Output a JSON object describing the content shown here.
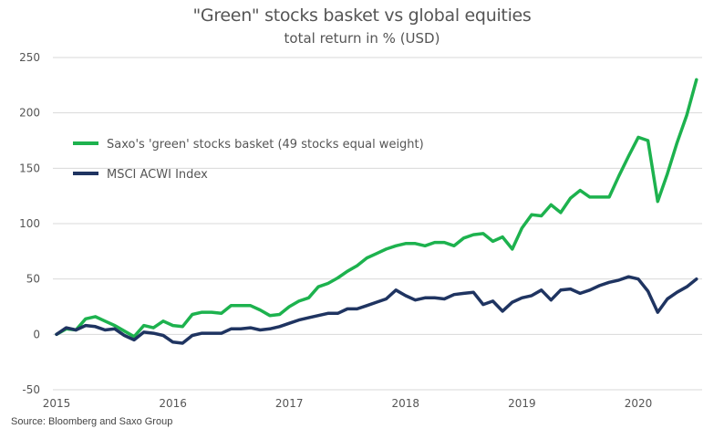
{
  "chart_data": {
    "type": "line",
    "title": "\"Green\" stocks basket vs global equities",
    "subtitle": "total return in % (USD)",
    "xlabel": "",
    "ylabel": "",
    "source": "Source: Bloomberg and Saxo Group",
    "x_start": 2015.0,
    "x_step_months": 1,
    "xlim": [
      2015.0,
      2020.52
    ],
    "ylim": [
      -50,
      250
    ],
    "y_ticks": [
      -50,
      0,
      50,
      100,
      150,
      200,
      250
    ],
    "y_tick_labels": [
      "-50",
      "0",
      "50",
      "100",
      "150",
      "200",
      "250"
    ],
    "x_ticks": [
      2015,
      2016,
      2017,
      2018,
      2019,
      2020
    ],
    "x_tick_labels": [
      "2015",
      "2016",
      "2017",
      "2018",
      "2019",
      "2020"
    ],
    "grid": "horizontal",
    "legend_position": "top-left",
    "series": [
      {
        "name": "Saxo's 'green' stocks basket (49 stocks equal weight)",
        "color": "#1db24e",
        "values": [
          0,
          5,
          4,
          14,
          16,
          12,
          8,
          3,
          -2,
          8,
          6,
          12,
          8,
          7,
          18,
          20,
          20,
          19,
          26,
          26,
          26,
          22,
          17,
          18,
          25,
          30,
          33,
          43,
          46,
          51,
          57,
          62,
          69,
          73,
          77,
          80,
          82,
          82,
          80,
          83,
          83,
          80,
          87,
          90,
          91,
          84,
          88,
          77,
          96,
          108,
          107,
          117,
          110,
          123,
          130,
          124,
          124,
          124,
          143,
          161,
          178,
          175,
          120,
          145,
          173,
          198,
          230
        ]
      },
      {
        "name": "MSCI ACWI Index",
        "color": "#1f3461",
        "values": [
          0,
          6,
          4,
          8,
          7,
          4,
          5,
          -1,
          -5,
          2,
          1,
          -1,
          -7,
          -8,
          -1,
          1,
          1,
          1,
          5,
          5,
          6,
          4,
          5,
          7,
          10,
          13,
          15,
          17,
          19,
          19,
          23,
          23,
          26,
          29,
          32,
          40,
          35,
          31,
          33,
          33,
          32,
          36,
          37,
          38,
          27,
          30,
          21,
          29,
          33,
          35,
          40,
          31,
          40,
          41,
          37,
          40,
          44,
          47,
          49,
          52,
          50,
          39,
          20,
          32,
          38,
          43,
          50
        ]
      }
    ]
  }
}
